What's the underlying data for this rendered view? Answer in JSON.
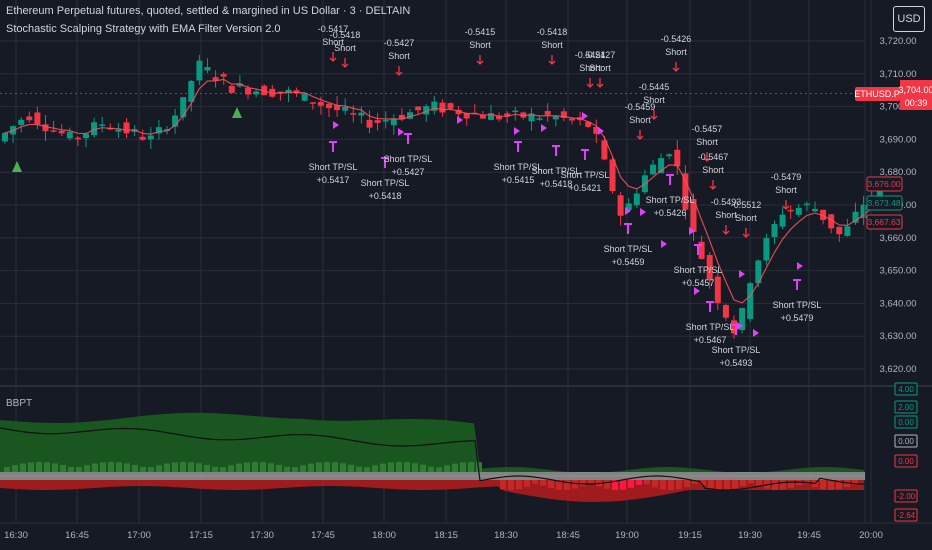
{
  "header": {
    "title": "Ethereum Perpetual futures, quoted, settled & margined in US Dollar · 3 · DELTAIN",
    "strategy": "Stochastic Scalping Strategy with EMA Filter Version 2.0"
  },
  "currency_button": "USD",
  "symbol_tag": {
    "label": "ETHUSD.P",
    "price": "3,704.00",
    "countdown": "00:39"
  },
  "price_tags": [
    {
      "text": "3,676.00",
      "color": "#f23645"
    },
    {
      "text": "3,673.48",
      "color": "#089981"
    },
    {
      "text": "3,667.63",
      "color": "#f23645"
    }
  ],
  "price_axis": {
    "labels": [
      "3,720.00",
      "3,710.00",
      "3,700.00",
      "3,690.00",
      "3,680.00",
      "3,670.00",
      "3,660.00",
      "3,650.00",
      "3,640.00",
      "3,630.00",
      "3,620.00"
    ],
    "values": [
      3720,
      3710,
      3700,
      3690,
      3680,
      3670,
      3660,
      3650,
      3640,
      3630,
      3620
    ]
  },
  "indicator": {
    "name": "BBPT",
    "axis_labels": [
      "4.00",
      "2.00",
      "0.00",
      "0.00",
      "0.00",
      "-2.00",
      "-2.64"
    ],
    "axis_colors": [
      "#089981",
      "#089981",
      "#089981",
      "#b2b5be",
      "#f23645",
      "#f23645",
      "#f23645"
    ]
  },
  "time_axis": [
    "16:30",
    "16:45",
    "17:00",
    "17:15",
    "17:30",
    "17:45",
    "18:00",
    "18:15",
    "18:30",
    "18:45",
    "19:00",
    "19:15",
    "19:30",
    "19:45",
    "20:00"
  ],
  "colors": {
    "up": "#089981",
    "down": "#f23645",
    "signal": "#e040fb",
    "background": "#161a25"
  },
  "annotations": {
    "short_entries": [
      {
        "label": "Short",
        "value": "-0.5417"
      },
      {
        "label": "Short",
        "value": "-0.5418"
      },
      {
        "label": "Short",
        "value": "-0.5427"
      },
      {
        "label": "Short",
        "value": "-0.5415"
      },
      {
        "label": "Short",
        "value": "-0.5418"
      },
      {
        "label": "Short",
        "value": "-0.5421"
      },
      {
        "label": "Short",
        "value": "-0.5427"
      },
      {
        "label": "Short",
        "value": "-0.5426"
      },
      {
        "label": "Short",
        "value": "-0.5445"
      },
      {
        "label": "Short",
        "value": "-0.5459"
      },
      {
        "label": "Short",
        "value": "-0.5457"
      },
      {
        "label": "Short",
        "value": "-0.5467"
      },
      {
        "label": "Short",
        "value": "-0.5493"
      },
      {
        "label": "Short",
        "value": "-0.5512"
      },
      {
        "label": "Short",
        "value": "-0.5479"
      }
    ],
    "exits": [
      {
        "label": "Short TP/SL",
        "value": "+0.5417"
      },
      {
        "label": "Short TP/SL",
        "value": "+0.5418"
      },
      {
        "label": "Short TP/SL",
        "value": "+0.5427"
      },
      {
        "label": "Short TP/SL",
        "value": "+0.5415"
      },
      {
        "label": "Short TP/SL",
        "value": "+0.5418"
      },
      {
        "label": "Short TP/SL",
        "value": "+0.5421"
      },
      {
        "label": "Short TP/SL",
        "value": "+0.5459"
      },
      {
        "label": "Short TP/SL",
        "value": "+0.5426"
      },
      {
        "label": "Short TP/SL",
        "value": "+0.5457"
      },
      {
        "label": "Short TP/SL",
        "value": "+0.5467"
      },
      {
        "label": "Short TP/SL",
        "value": "+0.5493"
      },
      {
        "label": "Short TP/SL",
        "value": "+0.5479"
      }
    ]
  }
}
